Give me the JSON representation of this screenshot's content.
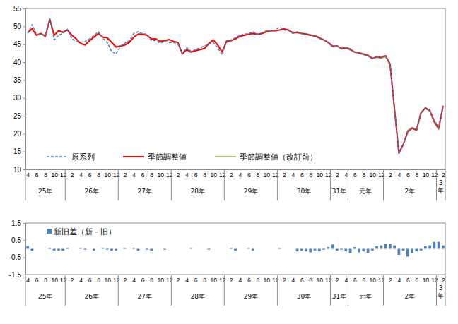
{
  "chart_data": [
    {
      "type": "line",
      "categories": [
        "4",
        null,
        "6",
        null,
        "8",
        null,
        "10",
        null,
        "12",
        null,
        "2",
        null,
        "4",
        null,
        "6",
        null,
        "8",
        null,
        "10",
        null,
        "12",
        null,
        "2",
        null,
        "4",
        null,
        "6",
        null,
        "8",
        null,
        "10",
        null,
        "12",
        null,
        "2",
        null,
        "4",
        null,
        "6",
        null,
        "8",
        null,
        "10",
        null,
        "12",
        null,
        "2",
        null,
        "4",
        null,
        "6",
        null,
        "8",
        null,
        "10",
        null,
        "12",
        null,
        "2",
        null,
        "4",
        null,
        "6",
        null,
        "8",
        null,
        "10",
        null,
        "12",
        null,
        "2",
        null,
        "4",
        null,
        "6",
        null,
        "8",
        null,
        "10",
        null,
        "12",
        null,
        "2",
        null,
        "4",
        null,
        "6",
        null,
        "8",
        null,
        "10",
        null,
        "12",
        null,
        "2"
      ],
      "category_groups": [
        {
          "label": "25年",
          "count": 9
        },
        {
          "label": "26年",
          "count": 12
        },
        {
          "label": "27年",
          "count": 12
        },
        {
          "label": "28年",
          "count": 12
        },
        {
          "label": "29年",
          "count": 12
        },
        {
          "label": "30年",
          "count": 12
        },
        {
          "label": "31年",
          "count": 4
        },
        {
          "label": "元年",
          "count": 8
        },
        {
          "label": "2年",
          "count": 12
        },
        {
          "label": "3年",
          "count": 2
        }
      ],
      "series": [
        {
          "name": "原系列",
          "color": "#4f81bd",
          "line_style": "dashed",
          "values": [
            48.0,
            50.5,
            47.8,
            47.8,
            47.5,
            52.2,
            46.2,
            47.5,
            48.0,
            49.2,
            46.5,
            45.8,
            45.5,
            45.8,
            46.5,
            47.5,
            48.5,
            46.8,
            45.5,
            43.0,
            42.3,
            44.5,
            45.3,
            46.0,
            48.0,
            48.5,
            48.0,
            47.8,
            46.0,
            46.0,
            45.3,
            45.8,
            45.5,
            45.5,
            45.0,
            42.5,
            44.0,
            43.0,
            43.5,
            44.0,
            44.5,
            45.0,
            45.5,
            44.0,
            42.0,
            46.0,
            46.2,
            46.8,
            47.5,
            47.8,
            48.0,
            48.5,
            47.8,
            48.2,
            48.8,
            48.7,
            49.0,
            49.8,
            49.0,
            48.8,
            48.0,
            48.5,
            48.0,
            47.5,
            47.6,
            47.2,
            46.6,
            46.2,
            45.4,
            44.3,
            44.6,
            43.6,
            44.1,
            43.4,
            42.9,
            42.4,
            42.1,
            41.7,
            41.1,
            41.4,
            41.4,
            41.7,
            39.6,
            27.2,
            14.3,
            17.1,
            20.7,
            21.6,
            21.2,
            25.6,
            27.3,
            26.4,
            23.7,
            21.6,
            27.6
          ]
        },
        {
          "name": "季節調整値",
          "color": "#ff0000",
          "line_style": "solid",
          "values": [
            48.3,
            49.3,
            47.5,
            48.0,
            47.2,
            52.0,
            47.5,
            48.8,
            48.3,
            49.0,
            47.5,
            46.5,
            45.2,
            44.8,
            46.0,
            47.0,
            48.0,
            47.0,
            46.8,
            45.5,
            44.2,
            44.5,
            44.8,
            45.5,
            47.0,
            47.8,
            47.8,
            47.5,
            46.5,
            46.5,
            45.8,
            46.0,
            46.3,
            45.8,
            45.5,
            42.3,
            43.5,
            42.8,
            43.2,
            43.5,
            43.8,
            45.2,
            46.2,
            44.8,
            42.8,
            45.8,
            46.0,
            46.5,
            47.2,
            47.5,
            47.8,
            48.0,
            47.8,
            48.0,
            48.5,
            48.8,
            48.8,
            49.0,
            49.3,
            49.0,
            48.2,
            48.3,
            48.0,
            47.8,
            47.5,
            47.3,
            46.8,
            46.2,
            45.5,
            44.5,
            44.5,
            43.8,
            44.0,
            43.5,
            42.8,
            42.5,
            42.2,
            41.8,
            41.0,
            41.5,
            41.3,
            41.8,
            39.5,
            27.0,
            14.5,
            17.0,
            20.5,
            21.5,
            21.0,
            25.8,
            27.2,
            26.5,
            23.5,
            21.5,
            27.8
          ]
        },
        {
          "name": "季節調整値（改訂前）",
          "color": "#97a83c",
          "line_style": "solid",
          "values": [
            48.15,
            49.4,
            47.5,
            48.0,
            47.2,
            51.95,
            47.6,
            48.9,
            48.4,
            48.95,
            47.5,
            46.5,
            45.15,
            44.85,
            46.0,
            47.1,
            48.0,
            46.95,
            46.85,
            45.6,
            44.3,
            44.5,
            44.75,
            45.5,
            46.95,
            47.9,
            47.8,
            47.55,
            46.6,
            46.5,
            45.8,
            46.05,
            46.3,
            45.8,
            45.5,
            42.3,
            43.5,
            42.75,
            43.2,
            43.5,
            43.8,
            45.25,
            46.2,
            44.8,
            42.8,
            45.8,
            45.95,
            46.6,
            47.2,
            47.5,
            47.75,
            48.1,
            47.8,
            48.0,
            48.5,
            48.8,
            48.8,
            48.95,
            49.3,
            49.0,
            48.2,
            48.45,
            48.1,
            47.95,
            47.7,
            47.4,
            46.95,
            46.25,
            45.4,
            44.25,
            44.6,
            43.85,
            44.15,
            43.75,
            42.7,
            42.7,
            42.35,
            42.05,
            41.1,
            41.35,
            41.1,
            41.5,
            39.2,
            26.8,
            14.85,
            17.1,
            20.95,
            21.75,
            21.15,
            25.9,
            27.05,
            26.3,
            23.1,
            21.1,
            27.6
          ]
        }
      ],
      "ylim": [
        10,
        55
      ],
      "yticks": [
        10,
        15,
        20,
        25,
        30,
        35,
        40,
        45,
        50,
        55
      ],
      "grid": false,
      "legend": "lower left"
    },
    {
      "type": "bar",
      "categories": [
        "4",
        null,
        "6",
        null,
        "8",
        null,
        "10",
        null,
        "12",
        null,
        "2",
        null,
        "4",
        null,
        "6",
        null,
        "8",
        null,
        "10",
        null,
        "12",
        null,
        "2",
        null,
        "4",
        null,
        "6",
        null,
        "8",
        null,
        "10",
        null,
        "12",
        null,
        "2",
        null,
        "4",
        null,
        "6",
        null,
        "8",
        null,
        "10",
        null,
        "12",
        null,
        "2",
        null,
        "4",
        null,
        "6",
        null,
        "8",
        null,
        "10",
        null,
        "12",
        null,
        "2",
        null,
        "4",
        null,
        "6",
        null,
        "8",
        null,
        "10",
        null,
        "12",
        null,
        "2",
        null,
        "4",
        null,
        "6",
        null,
        "8",
        null,
        "10",
        null,
        "12",
        null,
        "2",
        null,
        "4",
        null,
        "6",
        null,
        "8",
        null,
        "10",
        null,
        "12",
        null,
        "2"
      ],
      "category_groups": [
        {
          "label": "25年",
          "count": 9
        },
        {
          "label": "26年",
          "count": 12
        },
        {
          "label": "27年",
          "count": 12
        },
        {
          "label": "28年",
          "count": 12
        },
        {
          "label": "29年",
          "count": 12
        },
        {
          "label": "30年",
          "count": 12
        },
        {
          "label": "31年",
          "count": 4
        },
        {
          "label": "元年",
          "count": 8
        },
        {
          "label": "2年",
          "count": 12
        },
        {
          "label": "3年",
          "count": 2
        }
      ],
      "series": [
        {
          "name": "新旧差（新－旧）",
          "color": "#4f81bd",
          "values": [
            0.15,
            -0.1,
            0,
            0,
            0,
            0.05,
            -0.1,
            -0.1,
            -0.1,
            0.05,
            0,
            0,
            0.05,
            -0.05,
            0,
            -0.1,
            0,
            0.05,
            -0.05,
            -0.1,
            -0.1,
            0,
            0.05,
            0,
            0.05,
            -0.1,
            0,
            -0.05,
            -0.1,
            0,
            0,
            -0.05,
            0,
            0,
            0,
            0,
            0,
            0.05,
            0,
            0,
            0,
            -0.05,
            0,
            0,
            0,
            0,
            0.05,
            -0.1,
            0,
            0,
            0.05,
            -0.1,
            0,
            0,
            0,
            0,
            0,
            0.05,
            0,
            0,
            0,
            -0.15,
            -0.1,
            -0.15,
            -0.2,
            -0.1,
            -0.15,
            -0.05,
            0.1,
            0.25,
            -0.1,
            -0.05,
            -0.15,
            -0.25,
            0.1,
            -0.2,
            -0.15,
            -0.25,
            -0.1,
            0.15,
            0.2,
            0.3,
            0.3,
            0.2,
            -0.35,
            -0.1,
            -0.45,
            -0.25,
            -0.15,
            -0.1,
            0.15,
            0.2,
            0.4,
            0.4,
            0.2
          ]
        }
      ],
      "ylim": [
        -1.5,
        1.5
      ],
      "yticks": [
        -1.5,
        -0.5,
        0.5,
        1.5
      ],
      "grid": false,
      "legend": "upper left"
    }
  ]
}
